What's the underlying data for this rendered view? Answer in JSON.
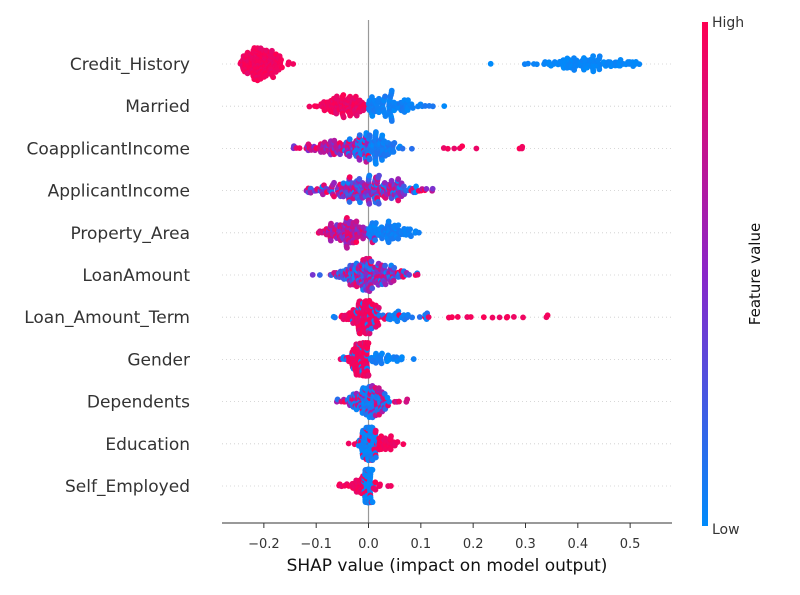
{
  "chart_data": {
    "type": "scatter",
    "subtype": "shap-beeswarm",
    "title": "",
    "xlabel": "SHAP value (impact on model output)",
    "ylabel": "",
    "xlim": [
      -0.28,
      0.58
    ],
    "xticks": [
      -0.2,
      -0.1,
      0.0,
      0.1,
      0.2,
      0.3,
      0.4,
      0.5
    ],
    "xtick_labels": [
      "−0.2",
      "−0.1",
      "0.0",
      "0.1",
      "0.2",
      "0.3",
      "0.4",
      "0.5"
    ],
    "zero_line": true,
    "grid": false,
    "colorbar": {
      "label": "Feature value",
      "high_label": "High",
      "low_label": "Low",
      "low_color": "#008bfb",
      "mid_color": "#8a26c9",
      "high_color": "#ff0052"
    },
    "features": [
      {
        "name": "Credit_History",
        "clusters": [
          {
            "min": -0.245,
            "max": -0.11,
            "center": -0.205,
            "spread": 0.022,
            "count": 170,
            "vmin": 0.88,
            "vmax": 1.0
          },
          {
            "min": 0.232,
            "max": 0.235,
            "center": 0.233,
            "spread": 0.001,
            "count": 1,
            "vmin": 0.0,
            "vmax": 0.0
          },
          {
            "min": 0.295,
            "max": 0.55,
            "center": 0.42,
            "spread": 0.06,
            "count": 110,
            "vmin": 0.0,
            "vmax": 0.05
          }
        ]
      },
      {
        "name": "Married",
        "clusters": [
          {
            "min": -0.16,
            "max": 0.0,
            "center": -0.05,
            "spread": 0.025,
            "count": 110,
            "vmin": 0.85,
            "vmax": 1.0
          },
          {
            "min": 0.0,
            "max": 0.16,
            "center": 0.04,
            "spread": 0.03,
            "count": 100,
            "vmin": 0.0,
            "vmax": 0.1
          }
        ]
      },
      {
        "name": "CoapplicantIncome",
        "clusters": [
          {
            "min": -0.2,
            "max": 0.0,
            "center": -0.06,
            "spread": 0.04,
            "count": 100,
            "vmin": 0.4,
            "vmax": 1.0
          },
          {
            "min": -0.05,
            "max": 0.12,
            "center": 0.01,
            "spread": 0.025,
            "count": 120,
            "vmin": 0.0,
            "vmax": 0.15
          },
          {
            "min": 0.1,
            "max": 0.3,
            "center": 0.19,
            "spread": 0.06,
            "count": 9,
            "vmin": 0.9,
            "vmax": 1.0
          }
        ]
      },
      {
        "name": "ApplicantIncome",
        "clusters": [
          {
            "min": -0.12,
            "max": 0.23,
            "center": 0.0,
            "spread": 0.055,
            "count": 240,
            "vmin": 0.0,
            "vmax": 1.0
          }
        ]
      },
      {
        "name": "Property_Area",
        "clusters": [
          {
            "min": -0.1,
            "max": 0.02,
            "center": -0.04,
            "spread": 0.025,
            "count": 120,
            "vmin": 0.4,
            "vmax": 1.0
          },
          {
            "min": 0.0,
            "max": 0.17,
            "center": 0.04,
            "spread": 0.03,
            "count": 90,
            "vmin": 0.0,
            "vmax": 0.1
          }
        ]
      },
      {
        "name": "LoanAmount",
        "clusters": [
          {
            "min": -0.16,
            "max": 0.15,
            "center": 0.0,
            "spread": 0.04,
            "count": 220,
            "vmin": 0.0,
            "vmax": 1.0
          }
        ]
      },
      {
        "name": "Loan_Amount_Term",
        "clusters": [
          {
            "min": -0.08,
            "max": 0.06,
            "center": -0.01,
            "spread": 0.018,
            "count": 130,
            "vmin": 0.85,
            "vmax": 1.0
          },
          {
            "min": -0.09,
            "max": 0.12,
            "center": 0.02,
            "spread": 0.04,
            "count": 50,
            "vmin": 0.0,
            "vmax": 0.15
          },
          {
            "min": 0.1,
            "max": 0.35,
            "center": 0.22,
            "spread": 0.07,
            "count": 16,
            "vmin": 0.9,
            "vmax": 1.0
          }
        ]
      },
      {
        "name": "Gender",
        "clusters": [
          {
            "min": -0.07,
            "max": 0.0,
            "center": -0.01,
            "spread": 0.015,
            "count": 130,
            "vmin": 0.88,
            "vmax": 1.0
          },
          {
            "min": -0.08,
            "max": 0.1,
            "center": 0.02,
            "spread": 0.03,
            "count": 50,
            "vmin": 0.0,
            "vmax": 0.1
          }
        ]
      },
      {
        "name": "Dependents",
        "clusters": [
          {
            "min": -0.08,
            "max": 0.09,
            "center": 0.0,
            "spread": 0.02,
            "count": 100,
            "vmin": 0.0,
            "vmax": 0.15
          },
          {
            "min": -0.07,
            "max": 0.09,
            "center": 0.0,
            "spread": 0.03,
            "count": 60,
            "vmin": 0.55,
            "vmax": 1.0
          }
        ]
      },
      {
        "name": "Education",
        "clusters": [
          {
            "min": -0.05,
            "max": 0.07,
            "center": 0.02,
            "spread": 0.02,
            "count": 60,
            "vmin": 0.88,
            "vmax": 1.0
          },
          {
            "min": -0.02,
            "max": 0.02,
            "center": 0.0,
            "spread": 0.008,
            "count": 90,
            "vmin": 0.0,
            "vmax": 0.08
          }
        ]
      },
      {
        "name": "Self_Employed",
        "clusters": [
          {
            "min": -0.07,
            "max": 0.05,
            "center": -0.01,
            "spread": 0.02,
            "count": 60,
            "vmin": 0.88,
            "vmax": 1.0
          },
          {
            "min": -0.01,
            "max": 0.01,
            "center": 0.0,
            "spread": 0.004,
            "count": 110,
            "vmin": 0.0,
            "vmax": 0.05
          }
        ]
      }
    ]
  }
}
